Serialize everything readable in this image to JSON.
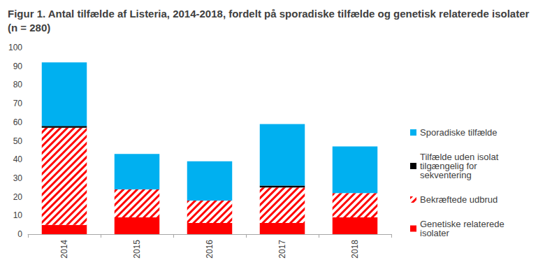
{
  "chart_data": {
    "type": "bar",
    "title": "Figur 1. Antal tilfælde af Listeria, 2014-2018, fordelt på sporadiske tilfælde og genetisk relaterede isolater (n = 280)",
    "categories": [
      "2014",
      "2015",
      "2016",
      "2017",
      "2018"
    ],
    "stacked": true,
    "grid": false,
    "legend": "right",
    "ylim": [
      0,
      100
    ],
    "yticks": [
      0,
      10,
      20,
      30,
      40,
      50,
      60,
      70,
      80,
      90,
      100
    ],
    "series": [
      {
        "name": "Genetiske relaterede isolater",
        "color": "#ff0000",
        "values": [
          5,
          9,
          6,
          6,
          9
        ]
      },
      {
        "name": "Bekræftede udbrud",
        "color": "#ff0000",
        "line_style": "hatched",
        "values": [
          52,
          15,
          12,
          19,
          13
        ]
      },
      {
        "name": "Tilfælde uden isolat tilgængelig for sekventering",
        "color": "#000000",
        "values": [
          1,
          0,
          0,
          1,
          0
        ]
      },
      {
        "name": "Sporadiske tilfælde",
        "color": "#00b0f0",
        "values": [
          34,
          19,
          21,
          33,
          25
        ]
      }
    ]
  }
}
